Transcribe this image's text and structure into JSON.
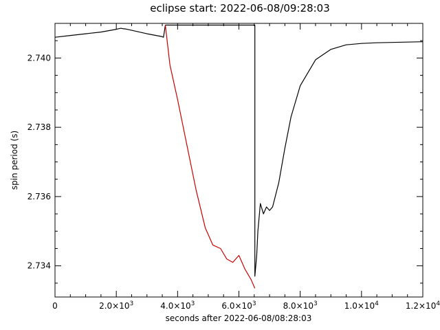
{
  "chart_data": {
    "type": "line",
    "title": "eclipse start: 2022-06-08/09:28:03",
    "xlabel": "seconds after 2022-06-08/08:28:03",
    "ylabel": "spin period (s)",
    "xlim": [
      0,
      12000
    ],
    "ylim": [
      2.7331,
      2.741
    ],
    "x_ticks": [
      {
        "value": 0,
        "mant": "0",
        "exp": ""
      },
      {
        "value": 2000,
        "mant": "2.0×10",
        "exp": "3"
      },
      {
        "value": 4000,
        "mant": "4.0×10",
        "exp": "3"
      },
      {
        "value": 6000,
        "mant": "6.0×10",
        "exp": "3"
      },
      {
        "value": 8000,
        "mant": "8.0×10",
        "exp": "3"
      },
      {
        "value": 10000,
        "mant": "1.0×10",
        "exp": "4"
      },
      {
        "value": 12000,
        "mant": "1.2×10",
        "exp": "4"
      }
    ],
    "y_ticks": [
      {
        "value": 2.734,
        "label": "2.734"
      },
      {
        "value": 2.736,
        "label": "2.736"
      },
      {
        "value": 2.738,
        "label": "2.738"
      },
      {
        "value": 2.74,
        "label": "2.740"
      }
    ],
    "series": [
      {
        "color": "#000000",
        "x": [
          0,
          500,
          1000,
          1500,
          2000,
          2150,
          2200,
          2300,
          2500,
          3000,
          3480,
          3540,
          3600
        ],
        "y": [
          2.7406,
          2.74065,
          2.7407,
          2.74075,
          2.74083,
          2.74086,
          2.74085,
          2.74084,
          2.7408,
          2.7407,
          2.74062,
          2.7406,
          2.74095
        ]
      },
      {
        "color": "#cc0000",
        "x": [
          3600,
          3750,
          4000,
          4300,
          4600,
          4900,
          5150,
          5400,
          5600,
          5800,
          6000,
          6200,
          6400,
          6520
        ],
        "y": [
          2.74095,
          2.7398,
          2.7388,
          2.7375,
          2.7362,
          2.7351,
          2.7346,
          2.7345,
          2.7342,
          2.7341,
          2.7343,
          2.7339,
          2.7336,
          2.73335
        ]
      },
      {
        "color": "#000000",
        "x": [
          3600,
          6520,
          6520,
          6580,
          6620,
          6700,
          6800,
          6900,
          7000,
          7100,
          7300,
          7500,
          7700,
          8000,
          8500,
          9000,
          9500,
          10000,
          10500,
          11000,
          11500,
          12000
        ],
        "y": [
          2.74095,
          2.74095,
          2.7337,
          2.7343,
          2.735,
          2.7358,
          2.7355,
          2.7357,
          2.7356,
          2.7357,
          2.7364,
          2.7374,
          2.7383,
          2.7392,
          2.73995,
          2.74025,
          2.74038,
          2.74042,
          2.74044,
          2.74045,
          2.74046,
          2.74047
        ]
      }
    ]
  }
}
